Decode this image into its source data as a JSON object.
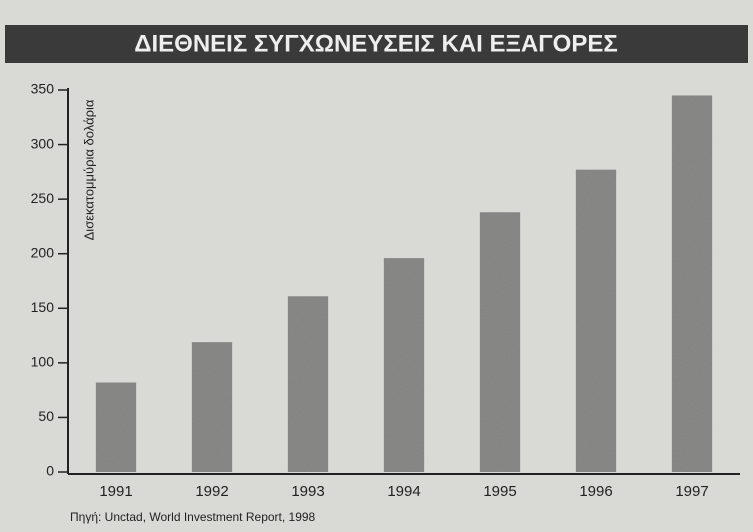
{
  "chart_data": {
    "type": "bar",
    "title": "ΔΙΕΘΝΕΙΣ ΣΥΓΧΩΝΕΥΣΕΙΣ ΚΑΙ ΕΞΑΓΟΡΕΣ",
    "y_label": "Δισεκατομμύρια δολάρια",
    "source": "Πηγή: Unctad, World Investment Report, 1998",
    "categories": [
      "1991",
      "1992",
      "1993",
      "1994",
      "1995",
      "1996",
      "1997"
    ],
    "values": [
      82,
      119,
      161,
      196,
      238,
      277,
      345
    ],
    "color": "#8c8c8a",
    "ylim": [
      0,
      350
    ],
    "yticks": [
      0,
      50,
      100,
      150,
      200,
      250,
      300,
      350
    ],
    "grid": false
  }
}
